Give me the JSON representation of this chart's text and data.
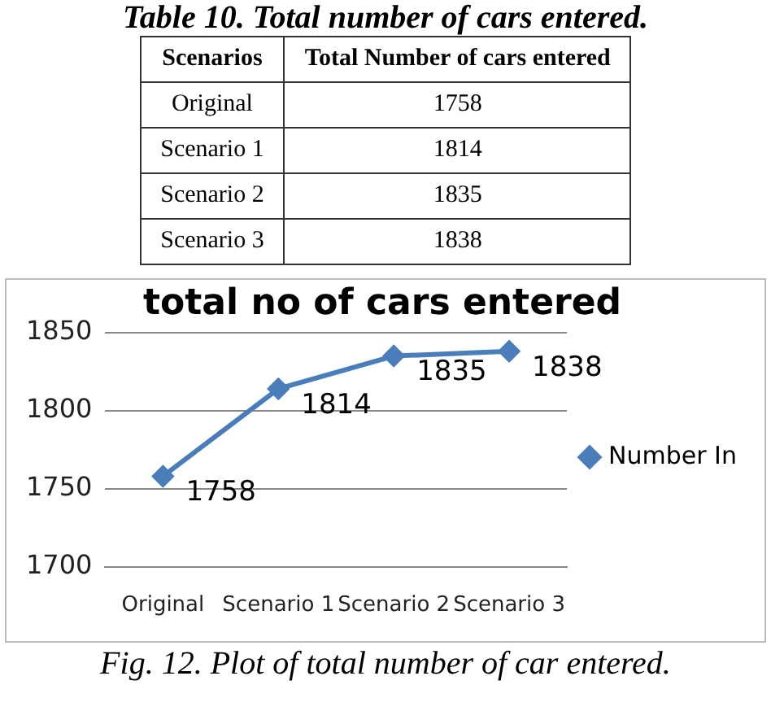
{
  "chart_data": [
    {
      "type": "other",
      "title": "Table 10. Total number of cars entered.",
      "xlabel": "Scenarios",
      "ylabel": "Total Number of cars entered",
      "categories": [
        "Original",
        "Scenario 1",
        "Scenario 2",
        "Scenario 3"
      ],
      "values": [
        1758,
        1814,
        1835,
        1838
      ],
      "data_labels": true
    },
    {
      "type": "line",
      "title": "total no of cars entered",
      "categories": [
        "Original",
        "Scenario 1",
        "Scenario 2",
        "Scenario 3"
      ],
      "series": [
        {
          "name": "Number In",
          "color": "#4a7ebb",
          "values": [
            1758,
            1814,
            1835,
            1838
          ]
        }
      ],
      "ylim": [
        1700,
        1850
      ],
      "yticks": [
        1700,
        1750,
        1800,
        1850
      ],
      "grid": "y",
      "legend": "right",
      "marker": "diamond",
      "line_style": "solid",
      "data_labels": true,
      "annotations": [
        "Fig. 12. Plot of total number of car entered."
      ]
    }
  ]
}
